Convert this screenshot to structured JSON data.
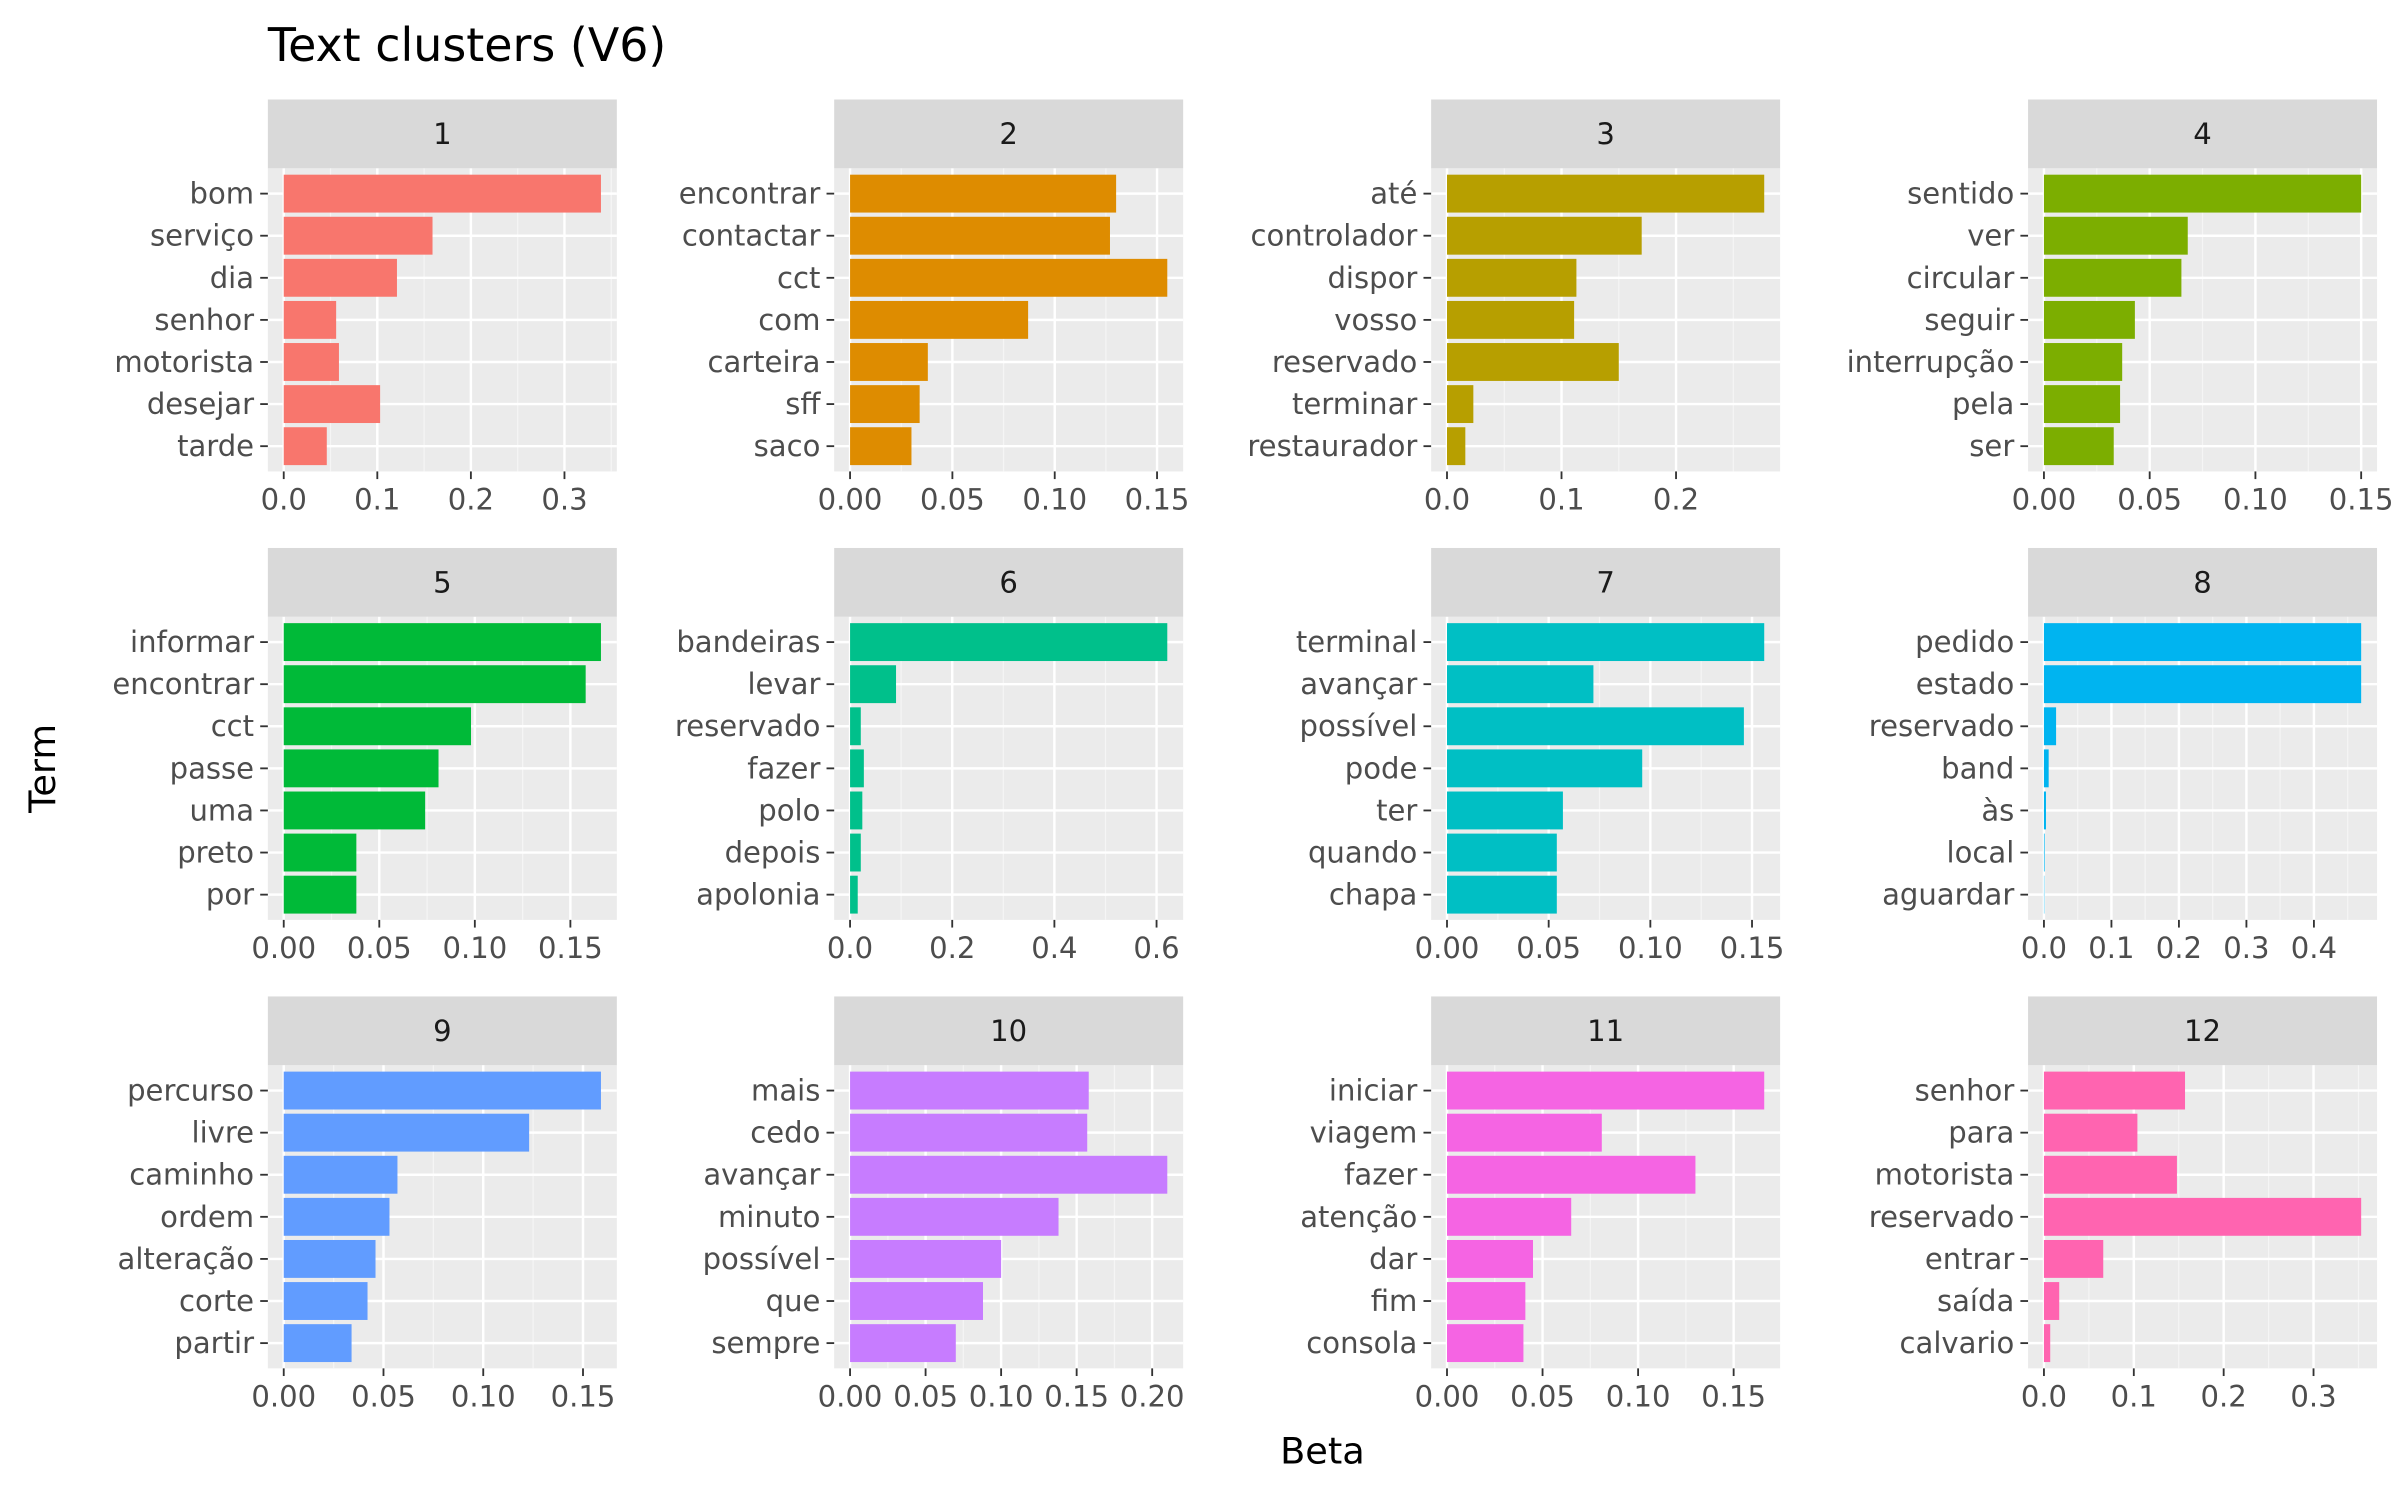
{
  "chart_data": {
    "type": "bar",
    "orientation": "horizontal",
    "title": "Text clusters (V6)",
    "xlabel": "Beta",
    "ylabel": "Term",
    "grid": true,
    "legend": "none",
    "facets": [
      {
        "label": "1",
        "color": "#F8766D",
        "xlim": [
          0,
          0.339
        ],
        "ticks": [
          0,
          0.1,
          0.2,
          0.3
        ],
        "tick_labels": [
          "0.0",
          "0.1",
          "0.2",
          "0.3"
        ],
        "terms": [
          "bom",
          "serviço",
          "dia",
          "senhor",
          "motorista",
          "desejar",
          "tarde"
        ],
        "values": [
          0.339,
          0.159,
          0.121,
          0.056,
          0.059,
          0.103,
          0.046
        ]
      },
      {
        "label": "2",
        "color": "#DE8C00",
        "xlim": [
          0,
          0.155
        ],
        "ticks": [
          0,
          0.05,
          0.1,
          0.15
        ],
        "tick_labels": [
          "0.00",
          "0.05",
          "0.10",
          "0.15"
        ],
        "terms": [
          "encontrar",
          "contactar",
          "cct",
          "com",
          "carteira",
          "sff",
          "saco"
        ],
        "values": [
          0.13,
          0.127,
          0.155,
          0.087,
          0.038,
          0.034,
          0.03
        ]
      },
      {
        "label": "3",
        "color": "#B79F00",
        "xlim": [
          0,
          0.277
        ],
        "ticks": [
          0,
          0.1,
          0.2
        ],
        "tick_labels": [
          "0.0",
          "0.1",
          "0.2"
        ],
        "terms": [
          "até",
          "controlador",
          "dispor",
          "vosso",
          "reservado",
          "terminar",
          "restaurador"
        ],
        "values": [
          0.277,
          0.17,
          0.113,
          0.111,
          0.15,
          0.023,
          0.016
        ]
      },
      {
        "label": "4",
        "color": "#7CAE00",
        "xlim": [
          0,
          0.15
        ],
        "ticks": [
          0,
          0.05,
          0.1,
          0.15
        ],
        "tick_labels": [
          "0.00",
          "0.05",
          "0.10",
          "0.15"
        ],
        "terms": [
          "sentido",
          "ver",
          "circular",
          "seguir",
          "interrupção",
          "pela",
          "ser"
        ],
        "values": [
          0.15,
          0.068,
          0.065,
          0.043,
          0.037,
          0.036,
          0.033
        ]
      },
      {
        "label": "5",
        "color": "#00BA38",
        "xlim": [
          0,
          0.166
        ],
        "ticks": [
          0,
          0.05,
          0.1,
          0.15
        ],
        "tick_labels": [
          "0.00",
          "0.05",
          "0.10",
          "0.15"
        ],
        "terms": [
          "informar",
          "encontrar",
          "cct",
          "passe",
          "uma",
          "preto",
          "por"
        ],
        "values": [
          0.166,
          0.158,
          0.098,
          0.081,
          0.074,
          0.038,
          0.038
        ]
      },
      {
        "label": "6",
        "color": "#00C08B",
        "xlim": [
          0,
          0.621
        ],
        "ticks": [
          0,
          0.2,
          0.4,
          0.6
        ],
        "tick_labels": [
          "0.0",
          "0.2",
          "0.4",
          "0.6"
        ],
        "terms": [
          "bandeiras",
          "levar",
          "reservado",
          "fazer",
          "polo",
          "depois",
          "apolonia"
        ],
        "values": [
          0.621,
          0.09,
          0.021,
          0.027,
          0.024,
          0.021,
          0.015
        ]
      },
      {
        "label": "7",
        "color": "#00BFC4",
        "xlim": [
          0,
          0.156
        ],
        "ticks": [
          0,
          0.05,
          0.1,
          0.15
        ],
        "tick_labels": [
          "0.00",
          "0.05",
          "0.10",
          "0.15"
        ],
        "terms": [
          "terminal",
          "avançar",
          "possível",
          "pode",
          "ter",
          "quando",
          "chapa"
        ],
        "values": [
          0.156,
          0.072,
          0.146,
          0.096,
          0.057,
          0.054,
          0.054
        ]
      },
      {
        "label": "8",
        "color": "#00B4F0",
        "xlim": [
          0,
          0.47
        ],
        "ticks": [
          0,
          0.1,
          0.2,
          0.3,
          0.4
        ],
        "tick_labels": [
          "0.0",
          "0.1",
          "0.2",
          "0.3",
          "0.4"
        ],
        "terms": [
          "pedido",
          "estado",
          "reservado",
          "band",
          "às",
          "local",
          "aguardar"
        ],
        "values": [
          0.47,
          0.47,
          0.018,
          0.007,
          0.003,
          0.001,
          0.0005
        ]
      },
      {
        "label": "9",
        "color": "#619CFF",
        "xlim": [
          0,
          0.159
        ],
        "ticks": [
          0,
          0.05,
          0.1,
          0.15
        ],
        "tick_labels": [
          "0.00",
          "0.05",
          "0.10",
          "0.15"
        ],
        "terms": [
          "percurso",
          "livre",
          "caminho",
          "ordem",
          "alteração",
          "corte",
          "partir"
        ],
        "values": [
          0.159,
          0.123,
          0.057,
          0.053,
          0.046,
          0.042,
          0.034
        ]
      },
      {
        "label": "10",
        "color": "#C77CFF",
        "xlim": [
          0,
          0.21
        ],
        "ticks": [
          0,
          0.05,
          0.1,
          0.15,
          0.2
        ],
        "tick_labels": [
          "0.00",
          "0.05",
          "0.10",
          "0.15",
          "0.20"
        ],
        "terms": [
          "mais",
          "cedo",
          "avançar",
          "minuto",
          "possível",
          "que",
          "sempre"
        ],
        "values": [
          0.158,
          0.157,
          0.21,
          0.138,
          0.1,
          0.088,
          0.07
        ]
      },
      {
        "label": "11",
        "color": "#F564E3",
        "xlim": [
          0,
          0.166
        ],
        "ticks": [
          0,
          0.05,
          0.1,
          0.15
        ],
        "tick_labels": [
          "0.00",
          "0.05",
          "0.10",
          "0.15"
        ],
        "terms": [
          "iniciar",
          "viagem",
          "fazer",
          "atenção",
          "dar",
          "fim",
          "consola"
        ],
        "values": [
          0.166,
          0.081,
          0.13,
          0.065,
          0.045,
          0.041,
          0.04
        ]
      },
      {
        "label": "12",
        "color": "#FF64B0",
        "xlim": [
          0,
          0.353
        ],
        "ticks": [
          0,
          0.1,
          0.2,
          0.3
        ],
        "tick_labels": [
          "0.0",
          "0.1",
          "0.2",
          "0.3"
        ],
        "terms": [
          "senhor",
          "para",
          "motorista",
          "reservado",
          "entrar",
          "saída",
          "calvario"
        ],
        "values": [
          0.157,
          0.104,
          0.148,
          0.353,
          0.066,
          0.017,
          0.007
        ]
      }
    ]
  }
}
